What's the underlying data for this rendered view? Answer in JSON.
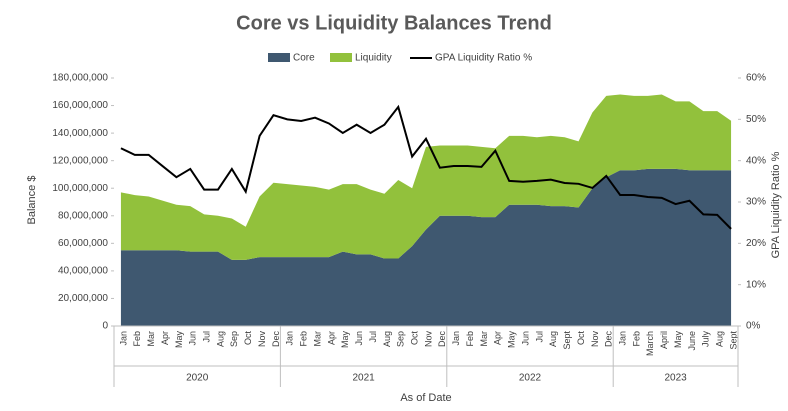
{
  "chart_data": {
    "type": "area",
    "title": "Core vs Liquidity Balances Trend",
    "x_label": "As of Date",
    "y_label": "Balance $",
    "y2_label": "GPA Liquidity Ratio %",
    "categories": [
      "Jan",
      "Feb",
      "Mar",
      "Apr",
      "May",
      "Jun",
      "Jul",
      "Aug",
      "Sep",
      "Oct",
      "Nov",
      "Dec",
      "Jan",
      "Feb",
      "Mar",
      "Apr",
      "May",
      "Jun",
      "Jul",
      "Aug",
      "Sep",
      "Oct",
      "Nov",
      "Dec",
      "Jan",
      "Feb",
      "Mar",
      "Apr",
      "May",
      "Jun",
      "Jul",
      "Aug",
      "Sept",
      "Oct",
      "Nov",
      "Dec",
      "Jan",
      "Feb",
      "March",
      "April",
      "May",
      "June",
      "July",
      "Aug",
      "Sept"
    ],
    "groups": [
      {
        "label": "2020",
        "count": 12
      },
      {
        "label": "2021",
        "count": 12
      },
      {
        "label": "2022",
        "count": 12
      },
      {
        "label": "2023",
        "count": 9
      }
    ],
    "series": [
      {
        "name": "Core",
        "type": "area",
        "color": "#3f5870",
        "values": [
          55000000,
          55000000,
          55000000,
          55000000,
          55000000,
          54000000,
          54000000,
          54000000,
          48000000,
          48000000,
          50000000,
          50000000,
          50000000,
          50000000,
          50000000,
          50000000,
          54000000,
          52000000,
          52000000,
          49000000,
          49000000,
          58000000,
          70000000,
          80000000,
          80000000,
          80000000,
          79000000,
          79000000,
          88000000,
          88000000,
          88000000,
          87000000,
          87000000,
          86000000,
          100000000,
          108000000,
          113000000,
          113000000,
          114000000,
          114000000,
          114000000,
          113000000,
          113000000,
          113000000,
          113000000
        ]
      },
      {
        "name": "Liquidity",
        "type": "area",
        "color": "#92c13c",
        "values": [
          42000000,
          40000000,
          39000000,
          36000000,
          33000000,
          33000000,
          27000000,
          26000000,
          30000000,
          24000000,
          44000000,
          54000000,
          53000000,
          52000000,
          51000000,
          49000000,
          49000000,
          51000000,
          47000000,
          47000000,
          57000000,
          42000000,
          60000000,
          51000000,
          51000000,
          51000000,
          51000000,
          50000000,
          50000000,
          50000000,
          49000000,
          51000000,
          50000000,
          48000000,
          55000000,
          59000000,
          55000000,
          54000000,
          53000000,
          54000000,
          49000000,
          50000000,
          43000000,
          43000000,
          36000000
        ]
      },
      {
        "name": "GPA Liquidity Ratio %",
        "type": "line",
        "axis": "y2",
        "color": "#000000",
        "values": [
          43,
          41.4,
          41.4,
          38.7,
          36,
          38,
          33,
          33,
          38,
          32.5,
          46,
          51,
          50,
          49.6,
          50.4,
          49,
          46.7,
          48.7,
          46.7,
          48.7,
          53,
          41,
          45.3,
          38.3,
          38.7,
          38.7,
          38.5,
          42.4,
          35.1,
          34.9,
          35.1,
          35.4,
          34.6,
          34.4,
          33.4,
          36.3,
          31.7,
          31.7,
          31.2,
          31,
          29.5,
          30.3,
          27,
          26.9,
          23.5
        ]
      }
    ],
    "ylim": [
      0,
      180000000
    ],
    "yticks": [
      0,
      {
        "value": 20000000,
        "label": "20,000,000"
      },
      {
        "value": 40000000,
        "label": "40,000,000"
      },
      {
        "value": 60000000,
        "label": "60,000,000"
      },
      {
        "value": 80000000,
        "label": "80,000,000"
      },
      {
        "value": 100000000,
        "label": "100,000,000"
      },
      {
        "value": 120000000,
        "label": "120,000,000"
      },
      {
        "value": 140000000,
        "label": "140,000,000"
      },
      {
        "value": 160000000,
        "label": "160,000,000"
      },
      {
        "value": 180000000,
        "label": "180,000,000"
      }
    ],
    "y2lim": [
      0,
      60
    ],
    "y2ticks": [
      {
        "value": 0,
        "label": "0%"
      },
      {
        "value": 10,
        "label": "10%"
      },
      {
        "value": 20,
        "label": "20%"
      },
      {
        "value": 30,
        "label": "30%"
      },
      {
        "value": 40,
        "label": "40%"
      },
      {
        "value": 50,
        "label": "50%"
      },
      {
        "value": 60,
        "label": "60%"
      }
    ],
    "legend": "top"
  }
}
